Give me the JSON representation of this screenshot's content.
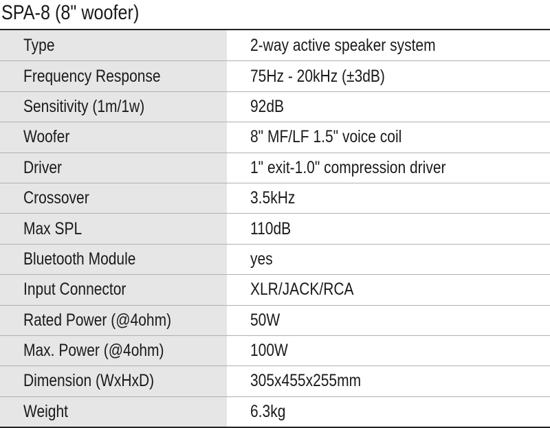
{
  "title": "SPA-8 (8\" woofer)",
  "colors": {
    "label_bg": "#e6e6e6",
    "row_line": "#b0b0b0",
    "border": "#222222"
  },
  "specs": [
    {
      "label": "Type",
      "value": "2-way active speaker system"
    },
    {
      "label": "Frequency Response",
      "value": "75Hz - 20kHz (±3dB)"
    },
    {
      "label": "Sensitivity (1m/1w)",
      "value": "92dB"
    },
    {
      "label": "Woofer",
      "value": "8\" MF/LF 1.5\" voice coil"
    },
    {
      "label": "Driver",
      "value": "1\" exit-1.0\" compression driver"
    },
    {
      "label": "Crossover",
      "value": "3.5kHz"
    },
    {
      "label": "Max SPL",
      "value": "110dB"
    },
    {
      "label": "Bluetooth Module",
      "value": "yes"
    },
    {
      "label": "Input Connector",
      "value": "XLR/JACK/RCA"
    },
    {
      "label": "Rated Power (@4ohm)",
      "value": "50W"
    },
    {
      "label": "Max. Power (@4ohm)",
      "value": "100W"
    },
    {
      "label": "Dimension (WxHxD)",
      "value": "305x455x255mm"
    },
    {
      "label": "Weight",
      "value": "6.3kg"
    }
  ]
}
